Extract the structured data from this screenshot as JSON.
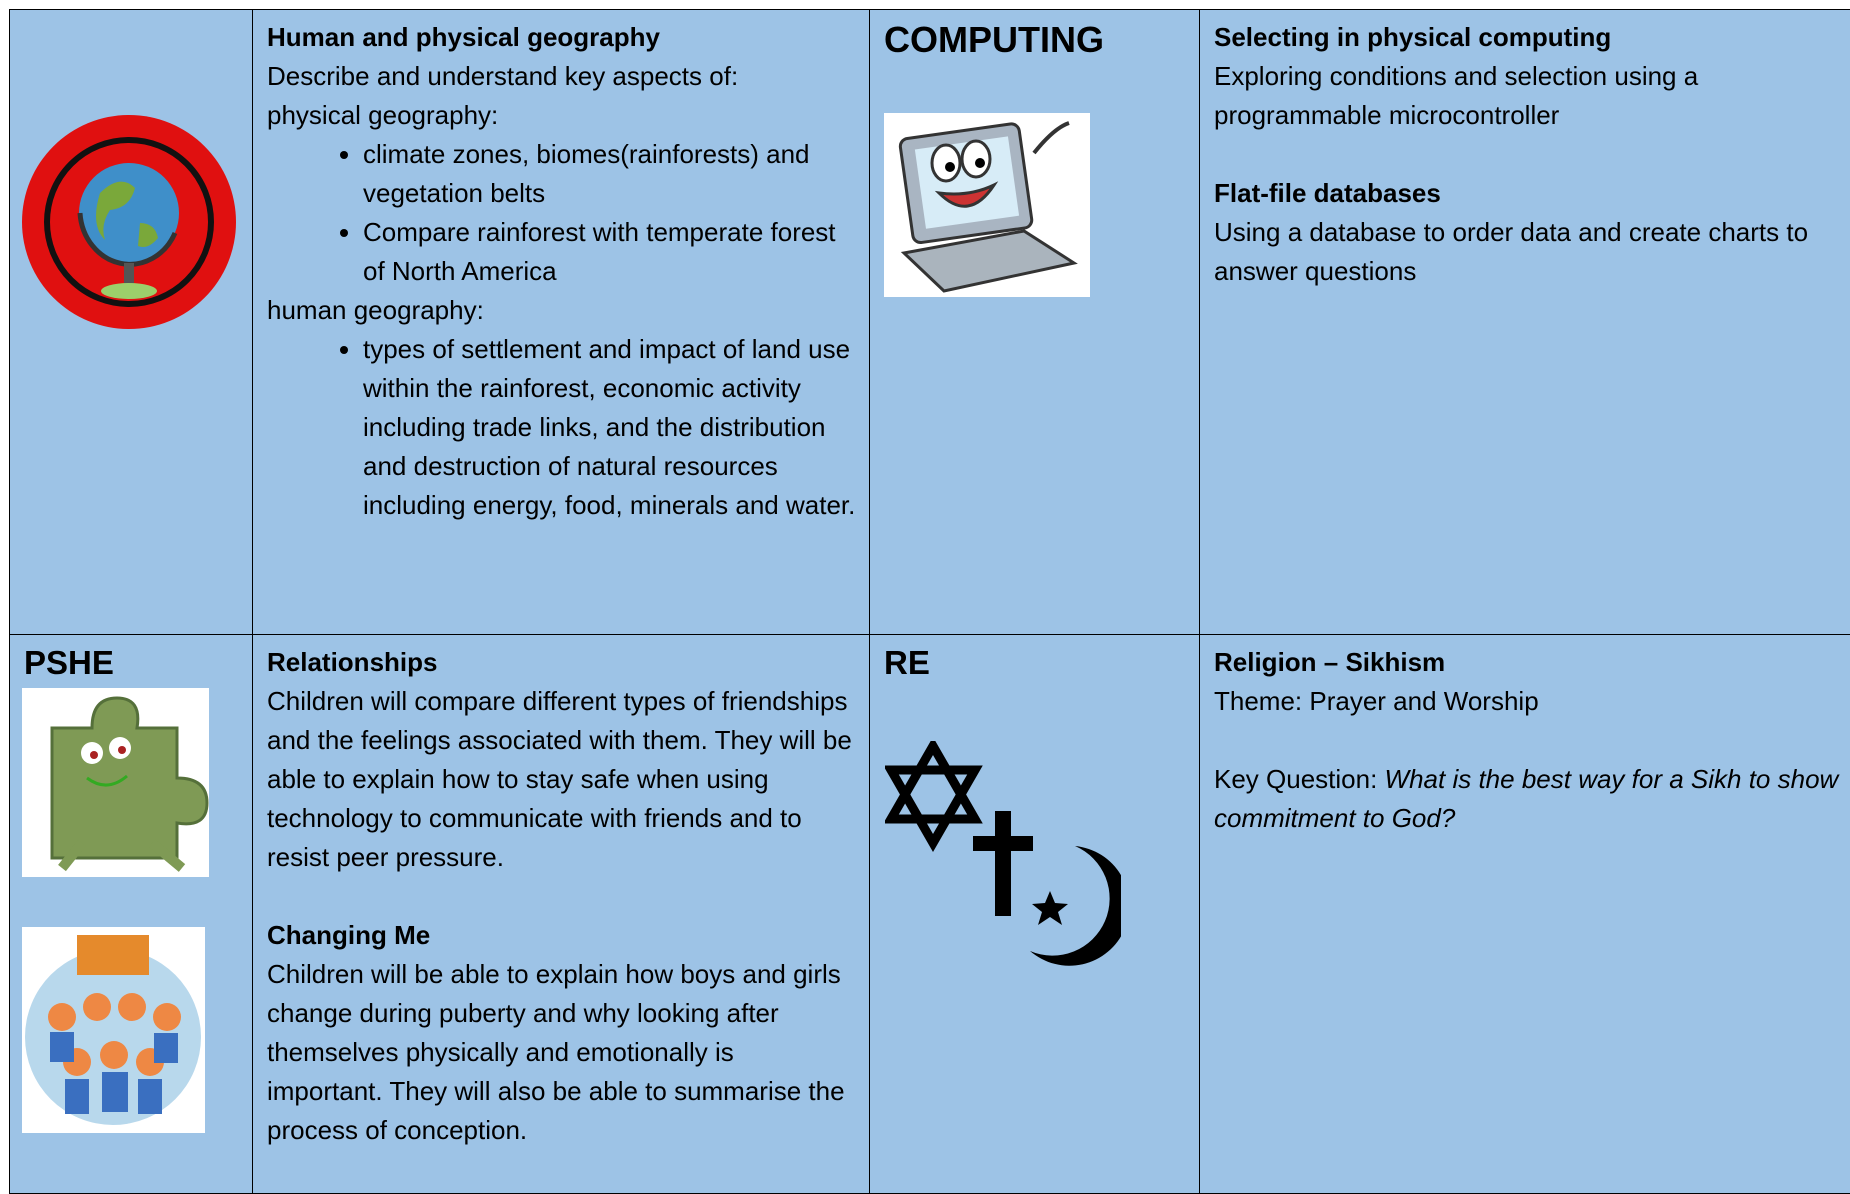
{
  "row1": {
    "geography": {
      "heading": "Human and physical geography",
      "intro": "Describe and understand key aspects of:",
      "physical_label": "physical geography:",
      "physical_items": [
        "climate zones, biomes(rainforests) and vegetation belts",
        "Compare rainforest with temperate forest of North America"
      ],
      "human_label": "human geography:",
      "human_items": [
        "types of settlement and impact of land use within the rainforest, economic activity including trade links, and the distribution and destruction of natural resources including energy, food, minerals and water."
      ]
    },
    "computing": {
      "label": "COMPUTING",
      "topics": [
        {
          "heading": "Selecting in physical computing",
          "text": "Exploring conditions and selection using a programmable microcontroller"
        },
        {
          "heading": "Flat-file databases",
          "text": "Using a database to order data and create charts to answer questions"
        }
      ]
    }
  },
  "row2": {
    "pshe": {
      "label": "PSHE",
      "topics": [
        {
          "heading": "Relationships",
          "text": "Children will compare different types of friendships and the feelings associated with them. They will be able to explain how to stay safe when using technology to communicate with friends and to resist peer pressure."
        },
        {
          "heading": "Changing Me",
          "text": "Children will be able to explain how boys and girls change during puberty and why looking after themselves physically and emotionally is important. They will also be able to summarise the process of conception."
        }
      ]
    },
    "re": {
      "label": "RE",
      "heading": "Religion – Sikhism",
      "theme": "Theme: Prayer and Worship",
      "question_label": "Key Question:",
      "question": "What is the best way for a Sikh to show commitment to God?"
    }
  }
}
